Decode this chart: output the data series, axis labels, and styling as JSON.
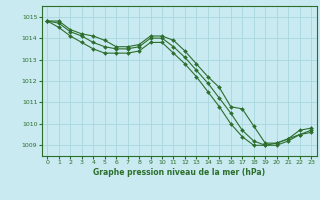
{
  "title": "Graphe pression niveau de la mer (hPa)",
  "background_color": "#c8eaf0",
  "grid_color": "#a8d8df",
  "line_color": "#2d6e2d",
  "marker_color": "#2d6e2d",
  "ylim": [
    1008.5,
    1015.5
  ],
  "xlim": [
    -0.5,
    23.5
  ],
  "yticks": [
    1009,
    1010,
    1011,
    1012,
    1013,
    1014,
    1015
  ],
  "xticks": [
    0,
    1,
    2,
    3,
    4,
    5,
    6,
    7,
    8,
    9,
    10,
    11,
    12,
    13,
    14,
    15,
    16,
    17,
    18,
    19,
    20,
    21,
    22,
    23
  ],
  "series": [
    [
      1014.8,
      1014.8,
      1014.4,
      1014.2,
      1014.1,
      1013.9,
      1013.6,
      1013.6,
      1013.7,
      1014.1,
      1014.1,
      1013.9,
      1013.4,
      1012.8,
      1012.2,
      1011.7,
      1010.8,
      1010.7,
      1009.9,
      1009.1,
      1009.1,
      1009.3,
      1009.7,
      1009.8
    ],
    [
      1014.8,
      1014.7,
      1014.3,
      1014.1,
      1013.8,
      1013.6,
      1013.5,
      1013.5,
      1013.6,
      1014.0,
      1014.0,
      1013.6,
      1013.1,
      1012.5,
      1011.9,
      1011.2,
      1010.5,
      1009.7,
      1009.2,
      1009.0,
      1009.0,
      1009.2,
      1009.5,
      1009.7
    ],
    [
      1014.8,
      1014.5,
      1014.1,
      1013.8,
      1013.5,
      1013.3,
      1013.3,
      1013.3,
      1013.4,
      1013.8,
      1013.8,
      1013.3,
      1012.8,
      1012.2,
      1011.5,
      1010.8,
      1010.0,
      1009.4,
      1009.0,
      1009.0,
      1009.1,
      1009.3,
      1009.5,
      1009.6
    ]
  ]
}
